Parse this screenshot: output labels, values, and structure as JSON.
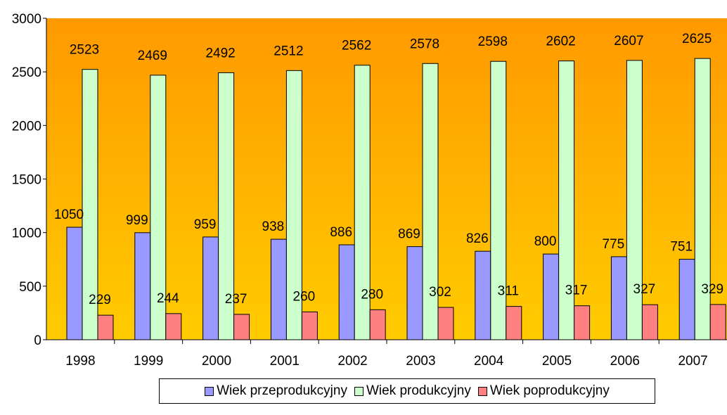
{
  "chart_data": {
    "type": "bar",
    "categories": [
      "1998",
      "1999",
      "2000",
      "2001",
      "2002",
      "2003",
      "2004",
      "2005",
      "2006",
      "2007"
    ],
    "series": [
      {
        "name": "Wiek przeprodukcyjny",
        "color": "#9999FF",
        "values": [
          1050,
          999,
          959,
          938,
          886,
          869,
          826,
          800,
          775,
          751
        ]
      },
      {
        "name": "Wiek produkcyjny",
        "color": "#CCFFCC",
        "values": [
          2523,
          2469,
          2492,
          2512,
          2562,
          2578,
          2598,
          2602,
          2607,
          2625
        ]
      },
      {
        "name": "Wiek poprodukcyjny",
        "color": "#FF8080",
        "values": [
          229,
          244,
          237,
          260,
          280,
          302,
          311,
          317,
          327,
          329
        ]
      }
    ],
    "ylim": [
      0,
      3000
    ],
    "yticks": [
      0,
      500,
      1000,
      1500,
      2000,
      2500,
      3000
    ],
    "title": "",
    "xlabel": "",
    "ylabel": "",
    "grid": false,
    "legend_position": "bottom",
    "background_gradient": [
      "#FF9900",
      "#FFCC00"
    ]
  }
}
